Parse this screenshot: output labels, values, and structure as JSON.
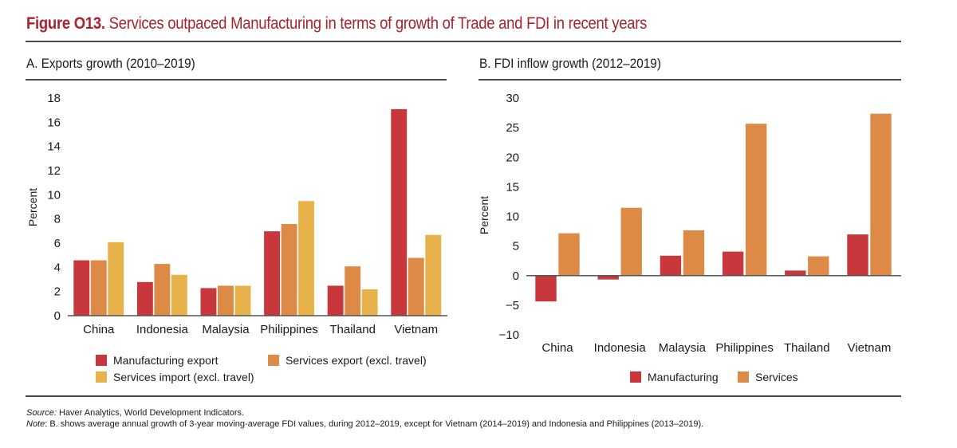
{
  "figure": {
    "title_bold": "Figure O13.",
    "title_rest": "Services outpaced Manufacturing in terms of growth of Trade and FDI in recent years"
  },
  "colors": {
    "title": "#a8232c",
    "manufacturing": "#c7373c",
    "services_export": "#dd8a47",
    "services_import": "#e8b24b",
    "axis": "#555555"
  },
  "footnotes": {
    "source_label": "Source:",
    "source_text": " Haver Analytics, World Development Indicators.",
    "note_label": "Note",
    "note_text": ": B. shows average annual growth of 3-year moving-average FDI values, during 2012–2019, except for Vietnam (2014–2019) and Indonesia and Philippines (2013–2019)."
  },
  "chart_data": [
    {
      "type": "bar",
      "title": "A. Exports growth (2010–2019)",
      "xlabel": "",
      "ylabel": "Percent",
      "ylim": [
        0,
        18
      ],
      "yticks": [
        0,
        2,
        4,
        6,
        8,
        10,
        12,
        14,
        16,
        18
      ],
      "grid": false,
      "legend_position": "bottom",
      "categories": [
        "China",
        "Indonesia",
        "Malaysia",
        "Philippines",
        "Thailand",
        "Vietnam"
      ],
      "series": [
        {
          "name": "Manufacturing export",
          "color_key": "manufacturing",
          "values": [
            4.6,
            2.8,
            2.3,
            7.0,
            2.5,
            17.1
          ]
        },
        {
          "name": "Services export (excl. travel)",
          "color_key": "services_export",
          "values": [
            4.6,
            4.3,
            2.5,
            7.6,
            4.1,
            4.8
          ]
        },
        {
          "name": "Services import (excl. travel)",
          "color_key": "services_import",
          "values": [
            6.1,
            3.4,
            2.5,
            9.5,
            2.2,
            6.7
          ]
        }
      ]
    },
    {
      "type": "bar",
      "title": "B. FDI inflow growth (2012–2019)",
      "xlabel": "",
      "ylabel": "Percent",
      "ylim": [
        -10,
        30
      ],
      "yticks": [
        -10,
        -5,
        0,
        5,
        10,
        15,
        20,
        25,
        30
      ],
      "grid": false,
      "legend_position": "bottom",
      "categories": [
        "China",
        "Indonesia",
        "Malaysia",
        "Philippines",
        "Thailand",
        "Vietnam"
      ],
      "series": [
        {
          "name": "Manufacturing",
          "color_key": "manufacturing",
          "values": [
            -4.4,
            -0.7,
            3.4,
            4.1,
            0.9,
            7.0
          ]
        },
        {
          "name": "Services",
          "color_key": "services_export",
          "values": [
            7.2,
            11.5,
            7.7,
            25.7,
            3.3,
            27.4
          ]
        }
      ]
    }
  ]
}
